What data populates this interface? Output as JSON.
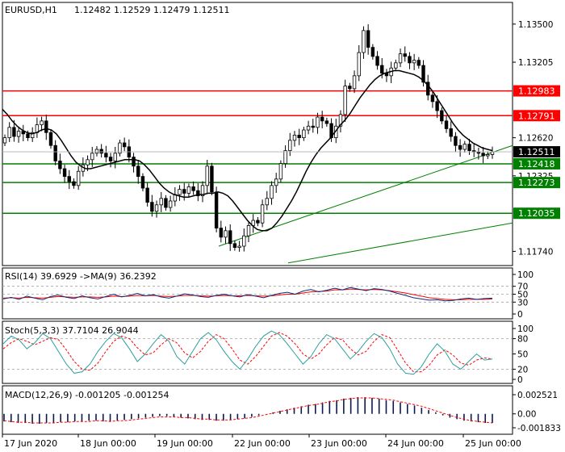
{
  "chart_data": {
    "type": "candlestick",
    "symbol_label": "EURUSD,H1",
    "ohlc_label": "1.12482 1.12529 1.12479 1.12511",
    "price_axis": {
      "ticks": [
        "1.13500",
        "1.13205",
        "1.12620",
        "1.12325",
        "1.11740"
      ],
      "tick_values": [
        1.135,
        1.13205,
        1.1262,
        1.12325,
        1.1174
      ]
    },
    "levels": [
      {
        "value": 1.12983,
        "label": "1.12983",
        "color": "#ff0000"
      },
      {
        "value": 1.12791,
        "label": "1.12791",
        "color": "#ff0000"
      },
      {
        "value": 1.12418,
        "label": "1.12418",
        "color": "#008000"
      },
      {
        "value": 1.12273,
        "label": "1.12273",
        "color": "#008000"
      },
      {
        "value": 1.12035,
        "label": "1.12035",
        "color": "#008000"
      }
    ],
    "current_price": {
      "value": 1.12511,
      "label": "1.12511"
    },
    "trendlines": [
      {
        "from": [
          0.424,
          1.1178
        ],
        "to": [
          1.0,
          1.1256
        ]
      },
      {
        "from": [
          0.56,
          1.1165
        ],
        "to": [
          1.0,
          1.1196
        ]
      }
    ],
    "price_series": [
      1.1262,
      1.127,
      1.1263,
      1.1267,
      1.1265,
      1.1262,
      1.1266,
      1.1272,
      1.1275,
      1.1266,
      1.1256,
      1.1244,
      1.1238,
      1.1232,
      1.1228,
      1.1225,
      1.1236,
      1.1241,
      1.1245,
      1.125,
      1.1253,
      1.125,
      1.1247,
      1.1244,
      1.125,
      1.1258,
      1.1255,
      1.1247,
      1.124,
      1.1232,
      1.1223,
      1.1212,
      1.1205,
      1.121,
      1.1215,
      1.1208,
      1.1213,
      1.1218,
      1.1222,
      1.1219,
      1.1224,
      1.1221,
      1.1217,
      1.1225,
      1.124,
      1.122,
      1.1192,
      1.1185,
      1.119,
      1.118,
      1.1177,
      1.1178,
      1.1186,
      1.1194,
      1.1198,
      1.1196,
      1.121,
      1.1215,
      1.1225,
      1.123,
      1.1242,
      1.1252,
      1.126,
      1.1264,
      1.1262,
      1.1268,
      1.1271,
      1.127,
      1.1278,
      1.1275,
      1.1273,
      1.1262,
      1.1271,
      1.128,
      1.1302,
      1.13,
      1.131,
      1.1328,
      1.1345,
      1.1332,
      1.1325,
      1.1318,
      1.1312,
      1.131,
      1.1316,
      1.132,
      1.1327,
      1.1325,
      1.132,
      1.1322,
      1.1318,
      1.1305,
      1.1295,
      1.129,
      1.1283,
      1.1275,
      1.1269,
      1.1263,
      1.1256,
      1.1253,
      1.1257,
      1.1252,
      1.1251,
      1.125,
      1.1248,
      1.1249,
      1.1251
    ],
    "ma_series": [
      1.1284,
      1.128,
      1.1275,
      1.1271,
      1.1268,
      1.1266,
      1.1265,
      1.1266,
      1.1268,
      1.1269,
      1.1268,
      1.1265,
      1.126,
      1.1254,
      1.1248,
      1.1243,
      1.124,
      1.1238,
      1.1238,
      1.1239,
      1.124,
      1.1241,
      1.1242,
      1.1243,
      1.1244,
      1.1245,
      1.1245,
      1.1245,
      1.1244,
      1.1241,
      1.1237,
      1.1232,
      1.1227,
      1.1223,
      1.122,
      1.1218,
      1.1217,
      1.1216,
      1.1216,
      1.1217,
      1.1218,
      1.1218,
      1.1219,
      1.1219,
      1.122,
      1.1219,
      1.1217,
      1.1213,
      1.1208,
      1.1203,
      1.1198,
      1.1194,
      1.1191,
      1.119,
      1.119,
      1.1192,
      1.1196,
      1.1201,
      1.1207,
      1.1213,
      1.122,
      1.1228,
      1.1236,
      1.1243,
      1.1249,
      1.1254,
      1.1258,
      1.1262,
      1.1267,
      1.1272,
      1.1276,
      1.1281,
      1.1287,
      1.1293,
      1.1298,
      1.1303,
      1.1307,
      1.131,
      1.1312,
      1.1313,
      1.1314,
      1.1314,
      1.1313,
      1.1312,
      1.1311,
      1.1309,
      1.1306,
      1.1302,
      1.1297,
      1.1291,
      1.1285,
      1.1279,
      1.1273,
      1.1268,
      1.1264,
      1.1261,
      1.1258,
      1.1256,
      1.1254,
      1.1253,
      1.1252
    ],
    "rsi": {
      "label": "RSI(14) 39.6929  ->MA(9) 36.2392",
      "ticks": [
        "100",
        "70",
        "50",
        "30",
        "0"
      ],
      "tick_values": [
        100,
        70,
        50,
        30,
        0
      ],
      "levels": [
        70,
        50,
        30
      ],
      "values": [
        38,
        42,
        37,
        45,
        40,
        36,
        44,
        48,
        42,
        39,
        46,
        41,
        38,
        44,
        50,
        43,
        47,
        52,
        46,
        49,
        43,
        40,
        45,
        51,
        48,
        44,
        42,
        47,
        50,
        46,
        43,
        49,
        45,
        41,
        47,
        52,
        55,
        50,
        58,
        62,
        56,
        60,
        65,
        61,
        67,
        63,
        59,
        64,
        62,
        58,
        52,
        47,
        41,
        38,
        35,
        36,
        33,
        34,
        38,
        40,
        37,
        39,
        40
      ],
      "ma_values": [
        40,
        41,
        40,
        42,
        41,
        40,
        42,
        44,
        43,
        42,
        43,
        43,
        42,
        43,
        45,
        44,
        45,
        47,
        46,
        47,
        45,
        44,
        45,
        47,
        47,
        46,
        45,
        46,
        47,
        46,
        46,
        47,
        46,
        45,
        46,
        48,
        50,
        50,
        53,
        56,
        57,
        58,
        61,
        61,
        63,
        62,
        61,
        62,
        61,
        59,
        56,
        53,
        49,
        45,
        41,
        39,
        37,
        36,
        36,
        37,
        37,
        37,
        38
      ]
    },
    "stoch": {
      "label": "Stoch(5,3,3) 37.7104 26.9044",
      "ticks": [
        "100",
        "80",
        "50",
        "20",
        "0"
      ],
      "tick_values": [
        100,
        80,
        50,
        20,
        0
      ],
      "levels": [
        80,
        20
      ],
      "k_values": [
        70,
        85,
        78,
        60,
        72,
        90,
        80,
        55,
        30,
        12,
        15,
        30,
        55,
        75,
        90,
        82,
        60,
        35,
        50,
        70,
        88,
        75,
        45,
        30,
        55,
        80,
        92,
        78,
        55,
        35,
        20,
        40,
        65,
        85,
        95,
        88,
        70,
        50,
        30,
        45,
        70,
        88,
        80,
        60,
        40,
        55,
        75,
        90,
        82,
        60,
        30,
        12,
        10,
        25,
        50,
        70,
        55,
        30,
        20,
        35,
        50,
        38,
        40
      ],
      "d_values": [
        60,
        72,
        80,
        75,
        68,
        75,
        82,
        78,
        58,
        35,
        20,
        18,
        32,
        55,
        75,
        85,
        80,
        62,
        48,
        52,
        68,
        80,
        72,
        52,
        42,
        55,
        75,
        88,
        80,
        60,
        38,
        30,
        45,
        65,
        85,
        92,
        85,
        70,
        50,
        40,
        50,
        68,
        82,
        78,
        60,
        48,
        55,
        75,
        88,
        82,
        58,
        32,
        15,
        15,
        28,
        48,
        58,
        48,
        32,
        28,
        38,
        42,
        40
      ]
    },
    "macd": {
      "label": "MACD(12,26,9) -0.001205 -0.001254",
      "ticks": [
        "0.002521",
        "0.00",
        "-0.001833"
      ],
      "tick_values": [
        0.002521,
        0.0,
        -0.001833
      ],
      "histogram": [
        -0.001,
        -0.0011,
        -0.0012,
        -0.0012,
        -0.0013,
        -0.0013,
        -0.0012,
        -0.0012,
        -0.0011,
        -0.0011,
        -0.001,
        -0.001,
        -0.0009,
        -0.0009,
        -0.001,
        -0.001,
        -0.0009,
        -0.0008,
        -0.0007,
        -0.0006,
        -0.0005,
        -0.0004,
        -0.0003,
        -0.0003,
        -0.0004,
        -0.0005,
        -0.0006,
        -0.0007,
        -0.0008,
        -0.0008,
        -0.0009,
        -0.0009,
        -0.0008,
        -0.0007,
        -0.0006,
        -0.0004,
        -0.0002,
        0.0,
        0.0002,
        0.0004,
        0.0006,
        0.0008,
        0.001,
        0.0012,
        0.0013,
        0.0015,
        0.0017,
        0.0018,
        0.002,
        0.0021,
        0.0022,
        0.0022,
        0.0021,
        0.002,
        0.0018,
        0.0017,
        0.0015,
        0.0013,
        0.0011,
        0.0008,
        0.0005,
        0.0002,
        -0.0002,
        -0.0005,
        -0.0007,
        -0.0009,
        -0.001,
        -0.0011,
        -0.0012,
        -0.0012
      ],
      "signal": [
        -0.0009,
        -0.001,
        -0.0011,
        -0.0011,
        -0.0012,
        -0.0012,
        -0.0012,
        -0.0012,
        -0.0011,
        -0.0011,
        -0.001,
        -0.001,
        -0.001,
        -0.0009,
        -0.0009,
        -0.001,
        -0.0009,
        -0.0009,
        -0.0008,
        -0.0007,
        -0.0006,
        -0.0005,
        -0.0004,
        -0.0004,
        -0.0004,
        -0.0005,
        -0.0005,
        -0.0006,
        -0.0007,
        -0.0007,
        -0.0008,
        -0.0008,
        -0.0008,
        -0.0007,
        -0.0006,
        -0.0005,
        -0.0003,
        -0.0001,
        0.0001,
        0.0003,
        0.0005,
        0.0007,
        0.0009,
        0.0011,
        0.0012,
        0.0014,
        0.0016,
        0.0017,
        0.0019,
        0.002,
        0.0021,
        0.0021,
        0.0021,
        0.002,
        0.0019,
        0.0018,
        0.0016,
        0.0014,
        0.0012,
        0.001,
        0.0007,
        0.0004,
        0.0001,
        -0.0002,
        -0.0005,
        -0.0007,
        -0.0009,
        -0.001,
        -0.0011,
        -0.0012
      ]
    },
    "time_axis": {
      "labels": [
        "17 Jun 2020",
        "18 Jun 00:00",
        "19 Jun 00:00",
        "22 Jun 00:00",
        "23 Jun 00:00",
        "24 Jun 00:00",
        "25 Jun 00:00"
      ]
    },
    "colors": {
      "candle": "#000000",
      "ma": "#000000",
      "resistance": "#ff0000",
      "support": "#008000",
      "trendline": "#008000",
      "rsi": "#0b2e7a",
      "rsi_ma": "#ff0000",
      "stoch_k": "#2e9e9e",
      "stoch_d": "#ff0000",
      "macd_hist": "#0b1a4a",
      "macd_signal": "#ff0000",
      "level_line": "#a0a0a0",
      "current_price_bg": "#000000"
    }
  }
}
